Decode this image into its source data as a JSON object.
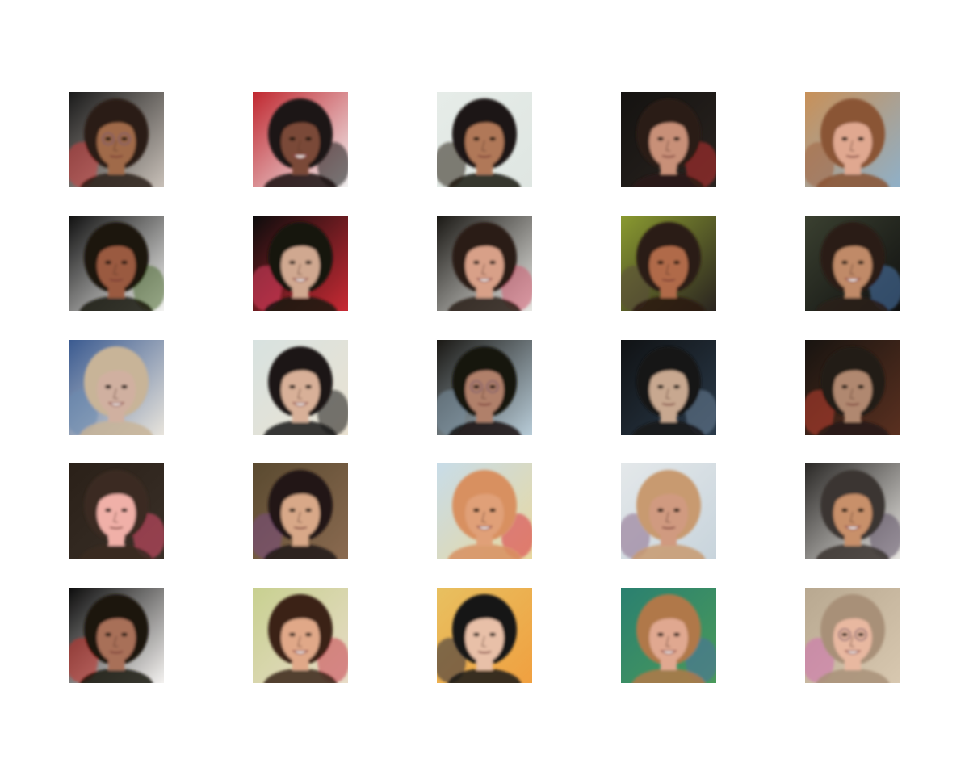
{
  "figure": {
    "rows": 5,
    "cols": 5,
    "background": "#ffffff",
    "tiles": [
      {
        "bg": [
          "#1a1a1a",
          "#c8c0b8"
        ],
        "skin": "#a06a4a",
        "hair": "#2a1c14",
        "accent": "#d04040",
        "smile": false,
        "glasses": true
      },
      {
        "bg": [
          "#c02830",
          "#f2f2f2"
        ],
        "skin": "#7a4a38",
        "hair": "#1a1212",
        "accent": "#101010",
        "smile": true,
        "glasses": false
      },
      {
        "bg": [
          "#e6ece8",
          "#dfe6e2"
        ],
        "skin": "#b07858",
        "hair": "#1a1412",
        "accent": "#2a2018",
        "smile": false,
        "glasses": false
      },
      {
        "bg": [
          "#141210",
          "#2a2420"
        ],
        "skin": "#c89078",
        "hair": "#2a1a14",
        "accent": "#c03030",
        "smile": false,
        "glasses": false
      },
      {
        "bg": [
          "#c89058",
          "#8fb0c8"
        ],
        "skin": "#e0a890",
        "hair": "#8a5434",
        "accent": "#a06040",
        "smile": false,
        "glasses": false
      },
      {
        "bg": [
          "#101010",
          "#f4f4f2"
        ],
        "skin": "#9a5a40",
        "hair": "#1a1410",
        "accent": "#4a6a30",
        "smile": false,
        "glasses": false
      },
      {
        "bg": [
          "#0c0c0c",
          "#c82a34"
        ],
        "skin": "#d0a890",
        "hair": "#181410",
        "accent": "#e04060",
        "smile": true,
        "glasses": false
      },
      {
        "bg": [
          "#1a1814",
          "#e8e8e4"
        ],
        "skin": "#d8a088",
        "hair": "#2a1c16",
        "accent": "#d05a70",
        "smile": true,
        "glasses": false
      },
      {
        "bg": [
          "#8a9a30",
          "#2a2420"
        ],
        "skin": "#b06a48",
        "hair": "#2a1a12",
        "accent": "#5a4a3a",
        "smile": false,
        "glasses": false
      },
      {
        "bg": [
          "#3a4030",
          "#101010"
        ],
        "skin": "#c08a68",
        "hair": "#2a1c14",
        "accent": "#4a7ab0",
        "smile": true,
        "glasses": false
      },
      {
        "bg": [
          "#3a5a90",
          "#e8e4dc"
        ],
        "skin": "#d0b0a0",
        "hair": "#c8b498",
        "accent": "#6a8ab0",
        "smile": true,
        "glasses": false
      },
      {
        "bg": [
          "#d8e2e0",
          "#eae2d2"
        ],
        "skin": "#d8b098",
        "hair": "#1a1816",
        "accent": "#101010",
        "smile": true,
        "glasses": false
      },
      {
        "bg": [
          "#1a1814",
          "#b8ccd8"
        ],
        "skin": "#b0806a",
        "hair": "#141210",
        "accent": "#7a90a0",
        "smile": false,
        "glasses": true
      },
      {
        "bg": [
          "#101214",
          "#2a3a4a"
        ],
        "skin": "#c8a890",
        "hair": "#181818",
        "accent": "#6a8098",
        "smile": false,
        "glasses": false
      },
      {
        "bg": [
          "#181410",
          "#5a3020"
        ],
        "skin": "#b08870",
        "hair": "#241a14",
        "accent": "#c04030",
        "smile": false,
        "glasses": false
      },
      {
        "bg": [
          "#2a2018",
          "#3a3028"
        ],
        "skin": "#f0b0a8",
        "hair": "#3a2a20",
        "accent": "#e05070",
        "smile": false,
        "glasses": false
      },
      {
        "bg": [
          "#5a4a30",
          "#8a6a50"
        ],
        "skin": "#d8a888",
        "hair": "#201814",
        "accent": "#7a4a80",
        "smile": false,
        "glasses": false
      },
      {
        "bg": [
          "#c8dce8",
          "#e8d8a0"
        ],
        "skin": "#e0a078",
        "hair": "#d89060",
        "accent": "#d83040",
        "smile": true,
        "glasses": false
      },
      {
        "bg": [
          "#e4e8ea",
          "#c8d4dc"
        ],
        "skin": "#d09a80",
        "hair": "#c89a70",
        "accent": "#8a6a8a",
        "smile": false,
        "glasses": false
      },
      {
        "bg": [
          "#2a2826",
          "#e8e6e2"
        ],
        "skin": "#c8906a",
        "hair": "#3a3430",
        "accent": "#5a4a60",
        "smile": true,
        "glasses": false
      },
      {
        "bg": [
          "#0c0c0c",
          "#f4f2f0"
        ],
        "skin": "#a87058",
        "hair": "#1a1410",
        "accent": "#c83028",
        "smile": false,
        "glasses": false
      },
      {
        "bg": [
          "#c8d090",
          "#e8dcc8"
        ],
        "skin": "#e0a888",
        "hair": "#3a2418",
        "accent": "#c84050",
        "smile": true,
        "glasses": false
      },
      {
        "bg": [
          "#e8c060",
          "#f0a040"
        ],
        "skin": "#e8c0a8",
        "hair": "#181418",
        "accent": "#2a2a3a",
        "smile": false,
        "glasses": false
      },
      {
        "bg": [
          "#2a8070",
          "#4a9a5a"
        ],
        "skin": "#e0a890",
        "hair": "#b07848",
        "accent": "#4a70a0",
        "smile": true,
        "glasses": false
      },
      {
        "bg": [
          "#b8a890",
          "#d8c8b0"
        ],
        "skin": "#e8b8a0",
        "hair": "#a89078",
        "accent": "#d070b0",
        "smile": true,
        "glasses": true
      }
    ]
  }
}
